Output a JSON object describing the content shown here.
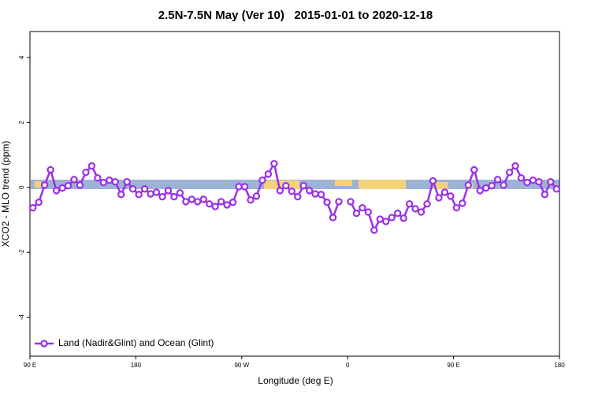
{
  "chart_data": {
    "type": "line",
    "title": "2.5N-7.5N May (Ver 10)   2015-01-01 to 2020-12-18",
    "xlabel": "Longitude (deg E)",
    "ylabel": "XCO2 - MLO trend (ppm)",
    "x": [
      92.5,
      97.5,
      102.5,
      107.5,
      112.5,
      117.5,
      122.5,
      127.5,
      132.5,
      137.5,
      142.5,
      147.5,
      152.5,
      157.5,
      162.5,
      167.5,
      172.5,
      177.5,
      182.5,
      187.5,
      192.5,
      197.5,
      202.5,
      207.5,
      212.5,
      217.5,
      222.5,
      227.5,
      232.5,
      237.5,
      242.5,
      247.5,
      252.5,
      257.5,
      262.5,
      267.5,
      272.5,
      277.5,
      282.5,
      287.5,
      292.5,
      297.5,
      302.5,
      307.5,
      312.5,
      317.5,
      322.5,
      327.5,
      332.5,
      337.5,
      342.5,
      347.5,
      352.5,
      357.5,
      362.5,
      367.5,
      372.5,
      377.5,
      382.5,
      387.5,
      392.5,
      397.5,
      402.5,
      407.5,
      412.5,
      417.5,
      422.5,
      427.5,
      432.5,
      437.5,
      442.5,
      447.5,
      452.5,
      457.5,
      462.5,
      467.5,
      472.5,
      477.5,
      482.5,
      487.5,
      492.5,
      497.5,
      502.5,
      507.5,
      512.5,
      517.5,
      522.5,
      527.5,
      532.5,
      537.5
    ],
    "series": [
      {
        "name": "Land (Nadir&Glint) and Ocean (Glint)",
        "color": "#9b30e8",
        "values": [
          -0.63,
          -0.46,
          0.07,
          0.54,
          -0.1,
          -0.02,
          0.05,
          0.24,
          0.07,
          0.46,
          0.66,
          0.29,
          0.15,
          0.22,
          0.17,
          -0.22,
          0.17,
          -0.05,
          -0.22,
          -0.05,
          -0.2,
          -0.15,
          -0.29,
          -0.1,
          -0.29,
          -0.17,
          -0.44,
          -0.37,
          -0.44,
          -0.37,
          -0.51,
          -0.59,
          -0.44,
          -0.54,
          -0.46,
          0.02,
          0.02,
          -0.39,
          -0.27,
          0.22,
          0.41,
          0.73,
          -0.1,
          0.05,
          -0.12,
          -0.29,
          0.05,
          -0.1,
          -0.2,
          -0.22,
          -0.46,
          -0.93,
          -0.44,
          null,
          -0.44,
          -0.8,
          -0.63,
          -0.76,
          -1.32,
          -0.98,
          -1.05,
          -0.93,
          -0.8,
          -0.95,
          -0.51,
          -0.66,
          -0.76,
          -0.51,
          0.2,
          -0.32,
          -0.15,
          -0.27,
          -0.63,
          -0.49,
          0.07,
          0.54,
          -0.1,
          -0.02,
          0.05,
          0.24,
          0.07,
          0.46,
          0.66,
          0.29,
          0.15,
          0.22,
          0.17,
          -0.22,
          0.17,
          -0.05
        ]
      }
    ],
    "xlim": [
      90,
      540
    ],
    "xticks": [
      {
        "value": 90,
        "label": "90 E"
      },
      180,
      {
        "value": 270,
        "label": "90 W"
      },
      {
        "value": 360,
        "label": "0"
      },
      {
        "value": 450,
        "label": "90 E"
      },
      {
        "value": 540,
        "label": "180"
      }
    ],
    "ylim": [
      -5.2,
      4.8
    ],
    "yticks": [
      -4,
      -2,
      0,
      2,
      4
    ],
    "legend": "bottom-left"
  }
}
